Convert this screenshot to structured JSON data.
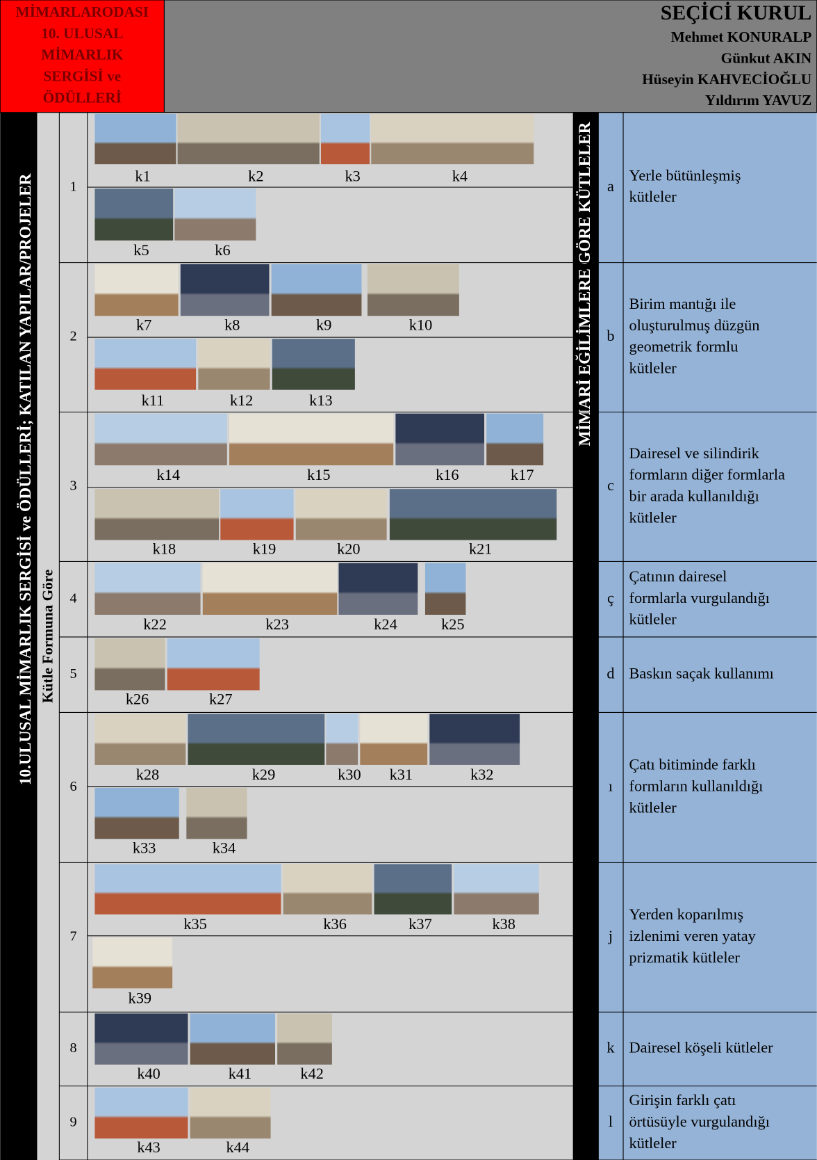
{
  "header": {
    "organization": [
      "MİMARLARODASI",
      "10. ULUSAL",
      "MİMARLIK",
      "SERGİSİ ve",
      "ÖDÜLLERİ"
    ],
    "jury_title": "SEÇİCİ KURUL",
    "jury": [
      "Mehmet KONURALP",
      "Günkut AKIN",
      "Hüseyin KAHVECİOĞLU",
      "Yıldırım YAVUZ"
    ]
  },
  "side_title": "10.ULUSAL MİMARLIK SERGİSİ ve ÖDÜLLERİ; KATILAN YAPILAR/PROJELER",
  "group_label": "Kütle Formuna Göre",
  "right_title": "MİMARİ EĞİLİMLERE GÖRE KÜTLELER",
  "rows": [
    {
      "number": "1",
      "letter": "a",
      "description": [
        "Yerle bütünleşmiş",
        "kütleler"
      ],
      "image_rows": [
        [
          "k1",
          "k2",
          "k3",
          "k4"
        ],
        [
          "k5",
          "k6"
        ]
      ]
    },
    {
      "number": "2",
      "letter": "b",
      "description": [
        "Birim mantığı ile",
        "oluşturulmuş düzgün",
        "geometrik formlu",
        "kütleler"
      ],
      "image_rows": [
        [
          "k7",
          "k8",
          "k9",
          "k10"
        ],
        [
          "k11",
          "k12",
          "k13"
        ]
      ]
    },
    {
      "number": "3",
      "letter": "c",
      "description": [
        "Dairesel ve silindirik",
        "formların diğer formlarla",
        "bir arada kullanıldığı",
        "kütleler"
      ],
      "image_rows": [
        [
          "k14",
          "k15",
          "k16",
          "k17"
        ],
        [
          "k18",
          "k19",
          "k20",
          "k21"
        ]
      ]
    },
    {
      "number": "4",
      "letter": "ç",
      "description": [
        "Çatının dairesel",
        "formlarla vurgulandığı",
        "kütleler"
      ],
      "image_rows": [
        [
          "k22",
          "k23",
          "k24",
          "k25"
        ]
      ]
    },
    {
      "number": "5",
      "letter": "d",
      "description": [
        "Baskın saçak kullanımı"
      ],
      "image_rows": [
        [
          "k26",
          "k27"
        ]
      ]
    },
    {
      "number": "6",
      "letter": "ı",
      "description": [
        "Çatı bitiminde farklı",
        "formların kullanıldığı",
        "kütleler"
      ],
      "image_rows": [
        [
          "k28",
          "k29",
          "k30",
          "k31",
          "k32"
        ],
        [
          "k33",
          "k34"
        ]
      ]
    },
    {
      "number": "7",
      "letter": "j",
      "description": [
        "Yerden koparılmış",
        "izlenimi veren yatay",
        "prizmatik kütleler"
      ],
      "image_rows": [
        [
          "k35",
          "k36",
          "k37",
          "k38"
        ],
        [
          "k39"
        ]
      ]
    },
    {
      "number": "8",
      "letter": "k",
      "description": [
        "Dairesel köşeli kütleler"
      ],
      "image_rows": [
        [
          "k40",
          "k41",
          "k42"
        ]
      ]
    },
    {
      "number": "9",
      "letter": "l",
      "description": [
        "Girişin farklı çatı",
        "örtüsüyle vurgulandığı",
        "kütleler"
      ],
      "image_rows": [
        [
          "k43",
          "k44"
        ]
      ]
    }
  ]
}
